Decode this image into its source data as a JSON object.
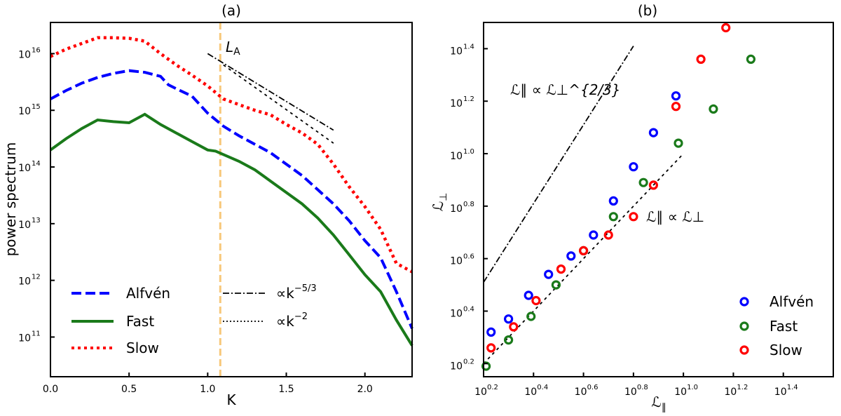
{
  "chart_data": [
    {
      "type": "line",
      "panel_label": "(a)",
      "xlabel": "K",
      "ylabel": "power spectrum",
      "xlim": [
        0.0,
        2.3
      ],
      "ylog": true,
      "ylim_exp": [
        10.3,
        16.55
      ],
      "xticks": [
        0.0,
        0.5,
        1.0,
        1.5,
        2.0
      ],
      "xtick_labels": [
        "0.0",
        "0.5",
        "1.0",
        "1.5",
        "2.0"
      ],
      "yticks_exp": [
        11,
        12,
        13,
        14,
        15,
        16
      ],
      "ytick_labels": [
        "10",
        "10",
        "10",
        "10",
        "10",
        "10"
      ],
      "ytick_exponents": [
        "11",
        "12",
        "13",
        "14",
        "15",
        "16"
      ],
      "vline": {
        "x": 1.08,
        "label": "L",
        "label_sub": "A",
        "color": "#f7c87a"
      },
      "series": [
        {
          "name": "Alfvén",
          "color": "#0000ff",
          "dash": "dashed",
          "x": [
            0.0,
            0.1,
            0.2,
            0.3,
            0.4,
            0.5,
            0.6,
            0.7,
            0.75,
            0.8,
            0.9,
            1.0,
            1.1,
            1.2,
            1.3,
            1.4,
            1.5,
            1.6,
            1.7,
            1.8,
            1.9,
            2.0,
            2.05,
            2.1,
            2.2,
            2.3
          ],
          "y_log10": [
            15.2,
            15.35,
            15.48,
            15.58,
            15.65,
            15.7,
            15.67,
            15.6,
            15.45,
            15.38,
            15.25,
            14.95,
            14.72,
            14.55,
            14.4,
            14.25,
            14.05,
            13.85,
            13.6,
            13.35,
            13.05,
            12.7,
            12.55,
            12.4,
            11.8,
            11.15
          ]
        },
        {
          "name": "Fast",
          "color": "#1a7a1a",
          "dash": "solid",
          "x": [
            0.0,
            0.1,
            0.2,
            0.3,
            0.4,
            0.5,
            0.6,
            0.7,
            0.8,
            0.9,
            1.0,
            1.05,
            1.1,
            1.2,
            1.3,
            1.4,
            1.5,
            1.6,
            1.7,
            1.8,
            1.9,
            2.0,
            2.1,
            2.2,
            2.3
          ],
          "y_log10": [
            14.3,
            14.5,
            14.68,
            14.83,
            14.8,
            14.78,
            14.93,
            14.75,
            14.6,
            14.45,
            14.3,
            14.28,
            14.22,
            14.1,
            13.95,
            13.75,
            13.55,
            13.35,
            13.1,
            12.8,
            12.45,
            12.1,
            11.8,
            11.3,
            10.85
          ]
        },
        {
          "name": "Slow",
          "color": "#ff0000",
          "dash": "dotted",
          "x": [
            0.0,
            0.1,
            0.2,
            0.3,
            0.4,
            0.5,
            0.6,
            0.7,
            0.8,
            0.9,
            1.0,
            1.1,
            1.2,
            1.3,
            1.4,
            1.5,
            1.6,
            1.7,
            1.8,
            1.9,
            2.0,
            2.1,
            2.15,
            2.2,
            2.3
          ],
          "y_log10": [
            15.95,
            16.08,
            16.18,
            16.28,
            16.28,
            16.27,
            16.22,
            16.0,
            15.8,
            15.62,
            15.43,
            15.2,
            15.1,
            15.0,
            14.92,
            14.75,
            14.6,
            14.4,
            14.05,
            13.65,
            13.3,
            12.9,
            12.6,
            12.3,
            12.15
          ]
        }
      ],
      "reference_lines": [
        {
          "name": "∝k",
          "exponent_label": "−5/3",
          "dash": "dashdot",
          "x": [
            1.0,
            1.8
          ],
          "y_log10": [
            16.0,
            14.65
          ]
        },
        {
          "name": "∝k",
          "exponent_label": "−2",
          "dash": "dotted",
          "x": [
            1.1,
            1.8
          ],
          "y_log10": [
            15.8,
            14.42
          ]
        }
      ],
      "legend": "lower-left"
    },
    {
      "type": "scatter",
      "panel_label": "(b)",
      "xlabel": "ℒ",
      "xlabel_sub": "∥",
      "ylabel": "ℒ",
      "ylabel_sub": "⊥",
      "xlog": true,
      "ylog": true,
      "xlim_exp": [
        0.2,
        1.6
      ],
      "ylim_exp": [
        0.15,
        1.5
      ],
      "xticks_exp": [
        0.2,
        0.4,
        0.6,
        0.8,
        1.0,
        1.2,
        1.4
      ],
      "xtick_labels": [
        "10",
        "10",
        "10",
        "10",
        "10",
        "10",
        "10"
      ],
      "xtick_exponents": [
        "0.2",
        "0.4",
        "0.6",
        "0.8",
        "1.0",
        "1.2",
        "1.4"
      ],
      "yticks_exp": [
        0.2,
        0.4,
        0.6,
        0.8,
        1.0,
        1.2,
        1.4
      ],
      "ytick_labels": [
        "10",
        "10",
        "10",
        "10",
        "10",
        "10",
        "10"
      ],
      "ytick_exponents": [
        "0.2",
        "0.4",
        "0.6",
        "0.8",
        "1.0",
        "1.2",
        "1.4"
      ],
      "series": [
        {
          "name": "Alfvén",
          "color": "#0000ff",
          "x_log10": [
            0.23,
            0.3,
            0.38,
            0.46,
            0.55,
            0.64,
            0.72,
            0.8,
            0.88,
            0.97
          ],
          "y_log10": [
            0.32,
            0.37,
            0.46,
            0.54,
            0.61,
            0.69,
            0.82,
            0.95,
            1.08,
            1.22
          ]
        },
        {
          "name": "Fast",
          "color": "#1a7a1a",
          "x_log10": [
            0.21,
            0.3,
            0.39,
            0.49,
            0.6,
            0.72,
            0.84,
            0.98,
            1.12,
            1.27
          ],
          "y_log10": [
            0.19,
            0.29,
            0.38,
            0.5,
            0.63,
            0.76,
            0.89,
            1.04,
            1.17,
            1.36
          ]
        },
        {
          "name": "Slow",
          "color": "#ff0000",
          "x_log10": [
            0.23,
            0.32,
            0.41,
            0.51,
            0.6,
            0.7,
            0.8,
            0.88,
            0.97,
            1.07,
            1.17
          ],
          "y_log10": [
            0.26,
            0.34,
            0.44,
            0.56,
            0.63,
            0.69,
            0.76,
            0.88,
            1.18,
            1.36,
            1.48
          ]
        }
      ],
      "reference_lines": [
        {
          "label": "ℒ∥ ∝ ℒ⊥^{2/3}",
          "dash": "dashdot",
          "x_log10": [
            0.2,
            0.8
          ],
          "y_log10": [
            0.51,
            1.41
          ]
        },
        {
          "label": "ℒ∥ ∝ ℒ⊥",
          "dash": "dotted",
          "x_log10": [
            0.2,
            1.0
          ],
          "y_log10": [
            0.2,
            1.0
          ]
        }
      ],
      "legend": "lower-right"
    }
  ]
}
